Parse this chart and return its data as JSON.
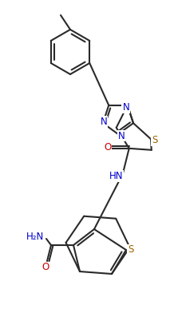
{
  "background_color": "#ffffff",
  "line_color": "#2a2a2a",
  "atom_colors": {
    "N": "#0000cc",
    "S": "#996600",
    "O": "#cc0000",
    "C": "#2a2a2a"
  },
  "figsize": [
    2.13,
    4.07
  ],
  "dpi": 100
}
